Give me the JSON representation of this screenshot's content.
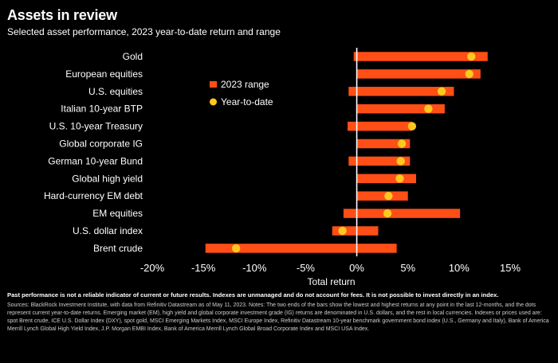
{
  "header": {
    "title": "Assets in review",
    "subtitle": "Selected asset performance, 2023 year-to-date return and range"
  },
  "footer": {
    "disclaimer": "Past performance is not a reliable indicator of current or future results. Indexes are unmanaged and do not account for fees. It is not possible to invest directly in an index.",
    "sources": "Sources: BlackRock Investment Institute, with data from Refinitiv Datastream as of May 11, 2023. Notes: The two ends of the bars show the lowest and highest returns at any point in the last 12-months, and the dots represent current year-to-date returns. Emerging market (EM), high yield and global corporate investment grade (IG) returns are denominated in U.S. dollars, and the rest in local currencies. Indexes or prices used are: spot Brent crude, ICE U.S. Dollar Index (DXY), spot gold, MSCI Emerging Markets Index, MSCI Europe Index, Refinitiv Datastream 10-year benchmark government bond index (U.S., Germany and Italy), Bank of America Merrill Lynch Global High Yield Index, J.P. Morgan EMBI Index, Bank of America Merrill Lynch Global Broad Corporate Index and MSCI USA Index."
  },
  "colors": {
    "background": "#000000",
    "bar": "#ff4e16",
    "dot": "#ffc81e",
    "zero_line": "#ffffff",
    "text": "#ffffff"
  },
  "chart_data": {
    "type": "bar",
    "orientation": "horizontal",
    "xlabel": "Total return",
    "xlim": [
      -20,
      15
    ],
    "xticks": [
      -20,
      -15,
      -10,
      -5,
      0,
      5,
      10,
      15
    ],
    "xtick_labels": [
      "-20%",
      "-15%",
      "-10%",
      "-5%",
      "0%",
      "5%",
      "10%",
      "15%"
    ],
    "legend": {
      "placement": "upper-left of plot area",
      "entries": [
        {
          "label": "2023 range",
          "marker": "bar"
        },
        {
          "label": "Year-to-date",
          "marker": "dot"
        }
      ]
    },
    "categories": [
      "Gold",
      "European equities",
      "U.S. equities",
      "Italian 10-year BTP",
      "U.S. 10-year Treasury",
      "Global corporate IG",
      "German 10-year Bund",
      "Global high yield",
      "Hard-currency EM debt",
      "EM equities",
      "U.S. dollar index",
      "Brent crude"
    ],
    "series": [
      {
        "name": "2023 range",
        "low": [
          -0.3,
          0.0,
          -0.8,
          0.0,
          -0.9,
          0.0,
          -0.8,
          0.0,
          0.0,
          -1.3,
          -2.4,
          -14.8
        ],
        "high": [
          12.8,
          12.1,
          9.5,
          8.6,
          5.4,
          5.2,
          5.2,
          5.8,
          5.0,
          10.1,
          2.1,
          3.9
        ]
      },
      {
        "name": "Year-to-date",
        "values": [
          11.2,
          11.0,
          8.3,
          7.0,
          5.4,
          4.4,
          4.3,
          4.2,
          3.1,
          3.0,
          -1.4,
          -11.8
        ]
      }
    ]
  }
}
